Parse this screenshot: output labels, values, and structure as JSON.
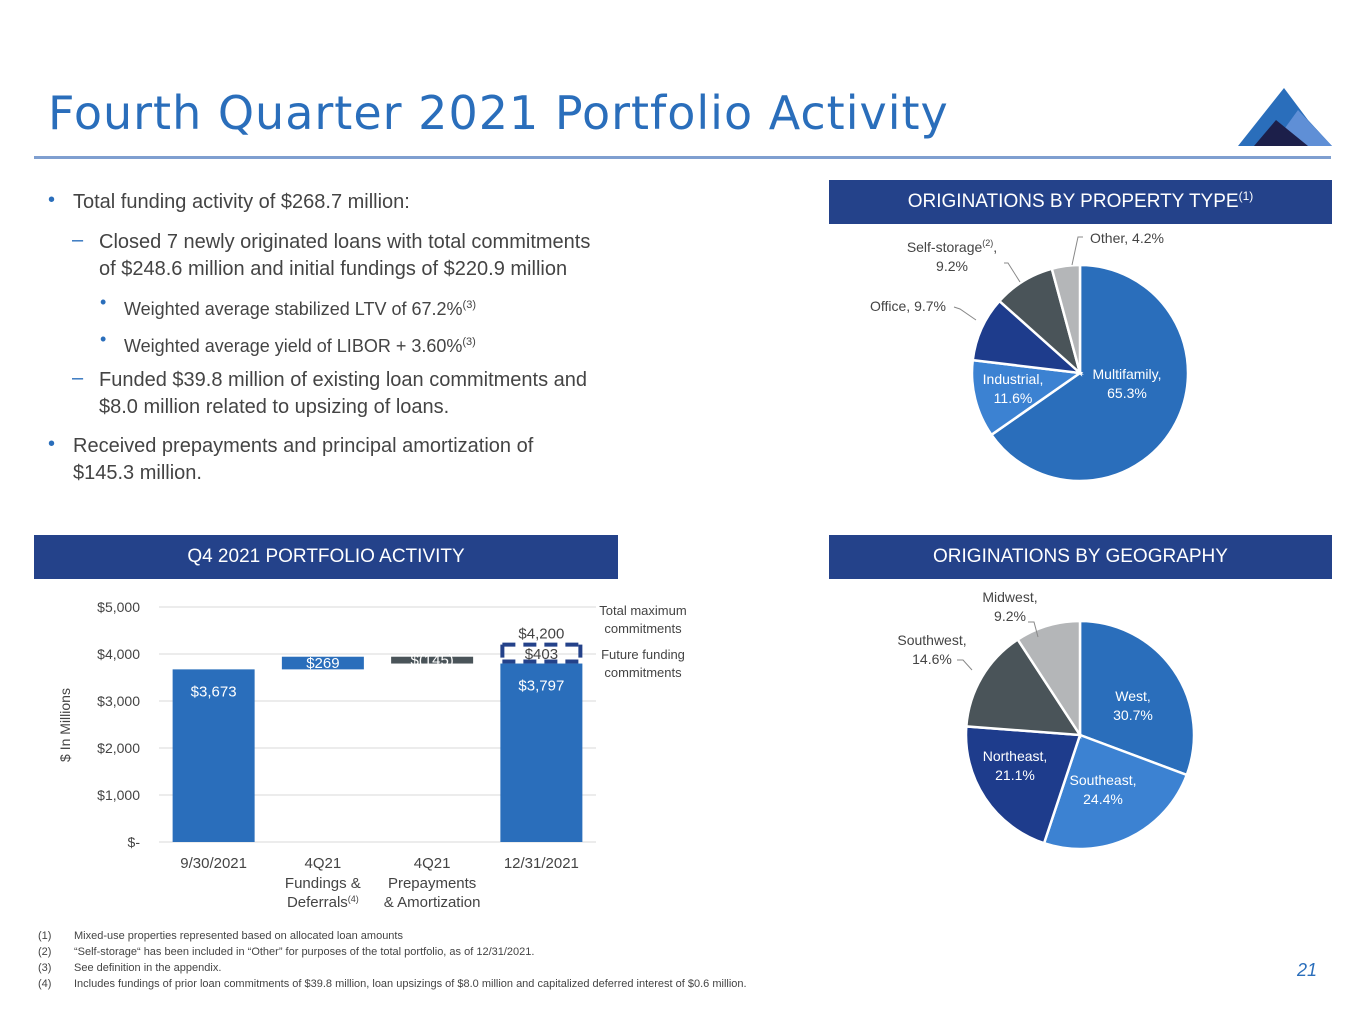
{
  "title": "Fourth Quarter 2021 Portfolio Activity",
  "page_number": "21",
  "bullets": {
    "b1": "Total funding activity of $268.7 million:",
    "b1a_l1": "Closed 7 newly originated loans with total commitments",
    "b1a_l2": "of $248.6 million and initial fundings of $220.9 million",
    "b1a_i": "Weighted average stabilized LTV of 67.2%",
    "b1a_i_sup": "(3)",
    "b1a_ii": "Weighted average yield of LIBOR + 3.60%",
    "b1a_ii_sup": "(3)",
    "b1b_l1": "Funded $39.8 million of existing loan commitments and",
    "b1b_l2": "$8.0 million related to upsizing of loans.",
    "b2_l1": "Received prepayments and principal amortization of",
    "b2_l2": "$145.3 million."
  },
  "headers": {
    "property_type": "ORIGINATIONS BY PROPERTY TYPE",
    "property_type_sup": "(1)",
    "portfolio_activity": "Q4 2021 PORTFOLIO ACTIVITY",
    "geography": "ORIGINATIONS BY GEOGRAPHY"
  },
  "colors": {
    "blue": "#2a6ebb",
    "light_blue": "#3c82d2",
    "navy": "#24428a",
    "dark_navy": "#1e3c8c",
    "dark_gray": "#4a5459",
    "light_gray": "#b4b6b8",
    "header_bg": "#24428a"
  },
  "chart_data": [
    {
      "type": "pie",
      "name": "property_type",
      "slices": [
        {
          "label": "Multifamily,",
          "label2": "65.3%",
          "value": 65.3,
          "color": "#2a6ebb"
        },
        {
          "label": "Industrial,",
          "label2": "11.6%",
          "value": 11.6,
          "color": "#3c82d2"
        },
        {
          "label": "Office, 9.7%",
          "label2": "",
          "value": 9.7,
          "color": "#1e3c8c"
        },
        {
          "label": "Self-storage",
          "label_sup": "(2)",
          "label_suffix": ",",
          "label2": "9.2%",
          "value": 9.2,
          "color": "#4a5459"
        },
        {
          "label": "Other, 4.2%",
          "label2": "",
          "value": 4.2,
          "color": "#b4b6b8"
        }
      ]
    },
    {
      "type": "bar",
      "name": "portfolio_activity",
      "ylabel": "$ In Millions",
      "ylim": [
        0,
        5000
      ],
      "y_ticks": [
        "$-",
        "$1,000",
        "$2,000",
        "$3,000",
        "$4,000",
        "$5,000"
      ],
      "categories": [
        {
          "l1": "9/30/2021",
          "l2": "",
          "l3": ""
        },
        {
          "l1": "4Q21",
          "l2": "Fundings &",
          "l3": "Deferrals",
          "l3_sup": "(4)"
        },
        {
          "l1": "4Q21",
          "l2": "Prepayments",
          "l3": "& Amortization"
        },
        {
          "l1": "12/31/2021",
          "l2": "",
          "l3": ""
        }
      ],
      "bars": [
        {
          "base": 0,
          "value": 3673,
          "label": "$3,673",
          "color": "#2a6ebb"
        },
        {
          "base": 3673,
          "value": 269,
          "label": "$269",
          "color": "#2a6ebb"
        },
        {
          "base": 3797,
          "value": 145,
          "label": "$(145)",
          "color": "#4a5459"
        },
        {
          "base": 0,
          "value": 3797,
          "label": "$3,797",
          "color": "#2a6ebb"
        }
      ],
      "future_funding": {
        "value": 403,
        "label": "$403"
      },
      "total_maximum": {
        "value": 4200,
        "label": "$4,200"
      },
      "legend": {
        "total_l1": "Total maximum",
        "total_l2": "commitments",
        "future_l1": "Future funding",
        "future_l2": "commitments"
      }
    },
    {
      "type": "pie",
      "name": "geography",
      "slices": [
        {
          "label": "West,",
          "label2": "30.7%",
          "value": 30.7,
          "color": "#2a6ebb"
        },
        {
          "label": "Southeast,",
          "label2": "24.4%",
          "value": 24.4,
          "color": "#3c82d2"
        },
        {
          "label": "Northeast,",
          "label2": "21.1%",
          "value": 21.1,
          "color": "#1e3c8c"
        },
        {
          "label": "Southwest,",
          "label2": "14.6%",
          "value": 14.6,
          "color": "#4a5459"
        },
        {
          "label": "Midwest,",
          "label2": "9.2%",
          "value": 9.2,
          "color": "#b4b6b8"
        }
      ]
    }
  ],
  "footnotes": [
    {
      "num": "(1)",
      "text": "Mixed-use properties represented based on allocated loan amounts"
    },
    {
      "num": "(2)",
      "text": "“Self-storage“ has been included in “Other” for purposes of the total portfolio, as of 12/31/2021."
    },
    {
      "num": "(3)",
      "text": "See definition in the appendix."
    },
    {
      "num": "(4)",
      "text": "Includes fundings of prior loan commitments of $39.8 million, loan upsizings of $8.0 million and capitalized deferred interest of $0.6 million."
    }
  ]
}
